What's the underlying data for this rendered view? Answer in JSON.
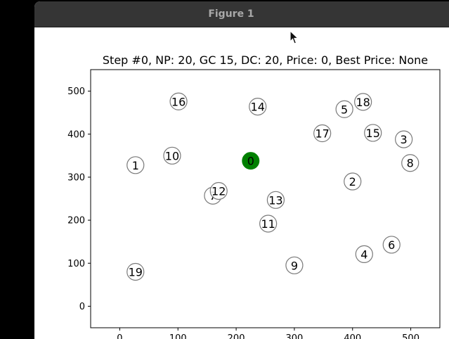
{
  "window": {
    "title": "Figure 1"
  },
  "colors": {
    "titlebar_bg": "#353535",
    "titlebar_text": "#a8a8a8",
    "node_edge": "#7a7a7a",
    "start_node_fill": "#008000",
    "figure_bg": "#ffffff"
  },
  "cursor_icon": "arrow-pointer-icon",
  "chart_data": {
    "type": "scatter",
    "title": "Step #0, NP: 20, GC 15, DC: 20, Price: 0, Best Price: None",
    "xlabel": "",
    "ylabel": "",
    "xlim": [
      -50,
      550
    ],
    "ylim": [
      -50,
      550
    ],
    "yticks": [
      0,
      100,
      200,
      300,
      400,
      500
    ],
    "xticks": [
      0,
      100,
      200,
      300,
      400,
      500
    ],
    "grid": false,
    "points": [
      {
        "label": "0",
        "x": 225,
        "y": 338,
        "start": true
      },
      {
        "label": "1",
        "x": 27,
        "y": 328
      },
      {
        "label": "2",
        "x": 400,
        "y": 290
      },
      {
        "label": "3",
        "x": 488,
        "y": 388
      },
      {
        "label": "4",
        "x": 420,
        "y": 121
      },
      {
        "label": "5",
        "x": 386,
        "y": 458
      },
      {
        "label": "6",
        "x": 467,
        "y": 143
      },
      {
        "label": "7",
        "x": 160,
        "y": 257
      },
      {
        "label": "8",
        "x": 499,
        "y": 333
      },
      {
        "label": "9",
        "x": 300,
        "y": 95
      },
      {
        "label": "10",
        "x": 90,
        "y": 350
      },
      {
        "label": "11",
        "x": 255,
        "y": 192
      },
      {
        "label": "12",
        "x": 170,
        "y": 268
      },
      {
        "label": "13",
        "x": 268,
        "y": 247
      },
      {
        "label": "14",
        "x": 237,
        "y": 464
      },
      {
        "label": "15",
        "x": 435,
        "y": 403
      },
      {
        "label": "16",
        "x": 101,
        "y": 476
      },
      {
        "label": "17",
        "x": 348,
        "y": 402
      },
      {
        "label": "18",
        "x": 418,
        "y": 475
      },
      {
        "label": "19",
        "x": 27,
        "y": 80
      }
    ]
  }
}
